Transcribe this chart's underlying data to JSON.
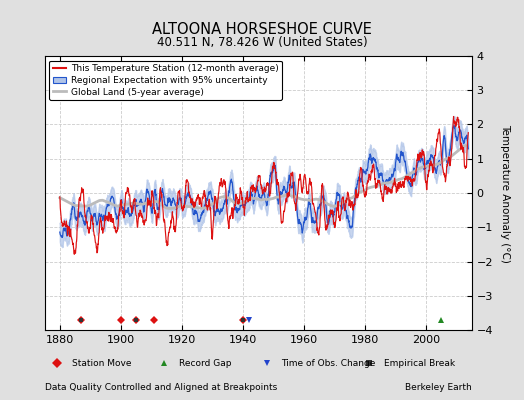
{
  "title": "ALTOONA HORSESHOE CURVE",
  "subtitle": "40.511 N, 78.426 W (United States)",
  "ylabel": "Temperature Anomaly (°C)",
  "ylim": [
    -4,
    4
  ],
  "xlim": [
    1875,
    2015
  ],
  "xticks": [
    1880,
    1900,
    1920,
    1940,
    1960,
    1980,
    2000
  ],
  "yticks": [
    -4,
    -3,
    -2,
    -1,
    0,
    1,
    2,
    3,
    4
  ],
  "bg_color": "#e0e0e0",
  "plot_bg_color": "#ffffff",
  "legend_labels": [
    "This Temperature Station (12-month average)",
    "Regional Expectation with 95% uncertainty",
    "Global Land (5-year average)"
  ],
  "footer_left": "Data Quality Controlled and Aligned at Breakpoints",
  "footer_right": "Berkeley Earth",
  "marker_legend": [
    "Station Move",
    "Record Gap",
    "Time of Obs. Change",
    "Empirical Break"
  ],
  "station_move_years": [
    1887,
    1900,
    1905,
    1911,
    1940
  ],
  "record_gap_years": [
    2005
  ],
  "time_obs_years": [
    1942
  ],
  "empirical_break_years": [
    1887,
    1905,
    1940
  ],
  "year_start": 1880,
  "year_end": 2013
}
